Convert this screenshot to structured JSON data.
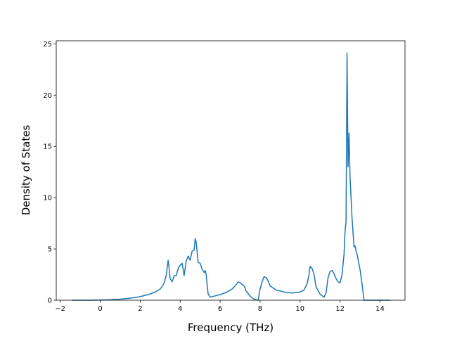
{
  "chart_data": {
    "type": "line",
    "title": "",
    "xlabel": "Frequency (THz)",
    "ylabel": "Density of States",
    "xlim": [
      -2.2,
      15.25
    ],
    "ylim": [
      0,
      25.3
    ],
    "xticks": [
      -2,
      0,
      2,
      4,
      6,
      8,
      10,
      12,
      14
    ],
    "xtick_labels": [
      "−2",
      "0",
      "2",
      "4",
      "6",
      "8",
      "10",
      "12",
      "14"
    ],
    "yticks": [
      0,
      5,
      10,
      15,
      20,
      25
    ],
    "ytick_labels": [
      "0",
      "5",
      "10",
      "15",
      "20",
      "25"
    ],
    "grid": false,
    "line_color": "#1f77b4",
    "series": [
      {
        "x": [
          -1.4,
          -0.5,
          0.0,
          0.5,
          1.0,
          1.5,
          2.0,
          2.5,
          2.8,
          3.0,
          3.1,
          3.2,
          3.3,
          3.4,
          3.45,
          3.5,
          3.6,
          3.7,
          3.8,
          3.9,
          4.0,
          4.1,
          4.2,
          4.3,
          4.4,
          4.5,
          4.6,
          4.7,
          4.75,
          4.8,
          4.9,
          5.0,
          5.1,
          5.2,
          5.25,
          5.3,
          5.35,
          5.4,
          5.5,
          5.7,
          6.0,
          6.3,
          6.6,
          6.8,
          6.9,
          7.0,
          7.1,
          7.2,
          7.3,
          7.5,
          7.7,
          7.9,
          8.0,
          8.1,
          8.2,
          8.3,
          8.4,
          8.5,
          8.8,
          9.2,
          9.6,
          10.0,
          10.2,
          10.35,
          10.45,
          10.5,
          10.6,
          10.7,
          10.8,
          11.0,
          11.2,
          11.3,
          11.4,
          11.5,
          11.6,
          11.7,
          11.8,
          11.9,
          12.0,
          12.1,
          12.2,
          12.25,
          12.3,
          12.35,
          12.4,
          12.45,
          12.5,
          12.55,
          12.6,
          12.7,
          12.75,
          12.8,
          12.85,
          12.9,
          13.0,
          13.1,
          13.2,
          13.3,
          13.5,
          14.0,
          14.5
        ],
        "y": [
          0.0,
          0.0,
          0.02,
          0.05,
          0.1,
          0.2,
          0.35,
          0.6,
          0.85,
          1.1,
          1.35,
          1.7,
          2.4,
          3.9,
          3.1,
          2.1,
          1.8,
          2.4,
          2.4,
          3.1,
          3.4,
          3.6,
          2.4,
          3.8,
          4.3,
          3.9,
          4.8,
          4.9,
          6.0,
          5.7,
          3.7,
          3.6,
          3.0,
          2.7,
          2.9,
          2.5,
          1.5,
          0.6,
          0.3,
          0.4,
          0.55,
          0.75,
          1.1,
          1.5,
          1.8,
          1.7,
          1.55,
          1.4,
          0.9,
          0.4,
          0.1,
          0.0,
          1.1,
          1.8,
          2.3,
          2.2,
          1.9,
          1.4,
          1.0,
          0.8,
          0.7,
          0.8,
          1.0,
          1.6,
          2.5,
          3.3,
          3.1,
          2.5,
          1.3,
          0.6,
          0.3,
          0.7,
          2.2,
          2.8,
          2.9,
          2.6,
          2.1,
          1.8,
          1.7,
          2.5,
          4.5,
          6.7,
          7.7,
          24.1,
          13.0,
          16.3,
          12.0,
          10.0,
          8.0,
          5.2,
          5.3,
          4.8,
          4.5,
          4.0,
          3.0,
          1.6,
          0.0,
          0.0,
          0.0,
          0.0,
          0.0
        ]
      }
    ]
  }
}
